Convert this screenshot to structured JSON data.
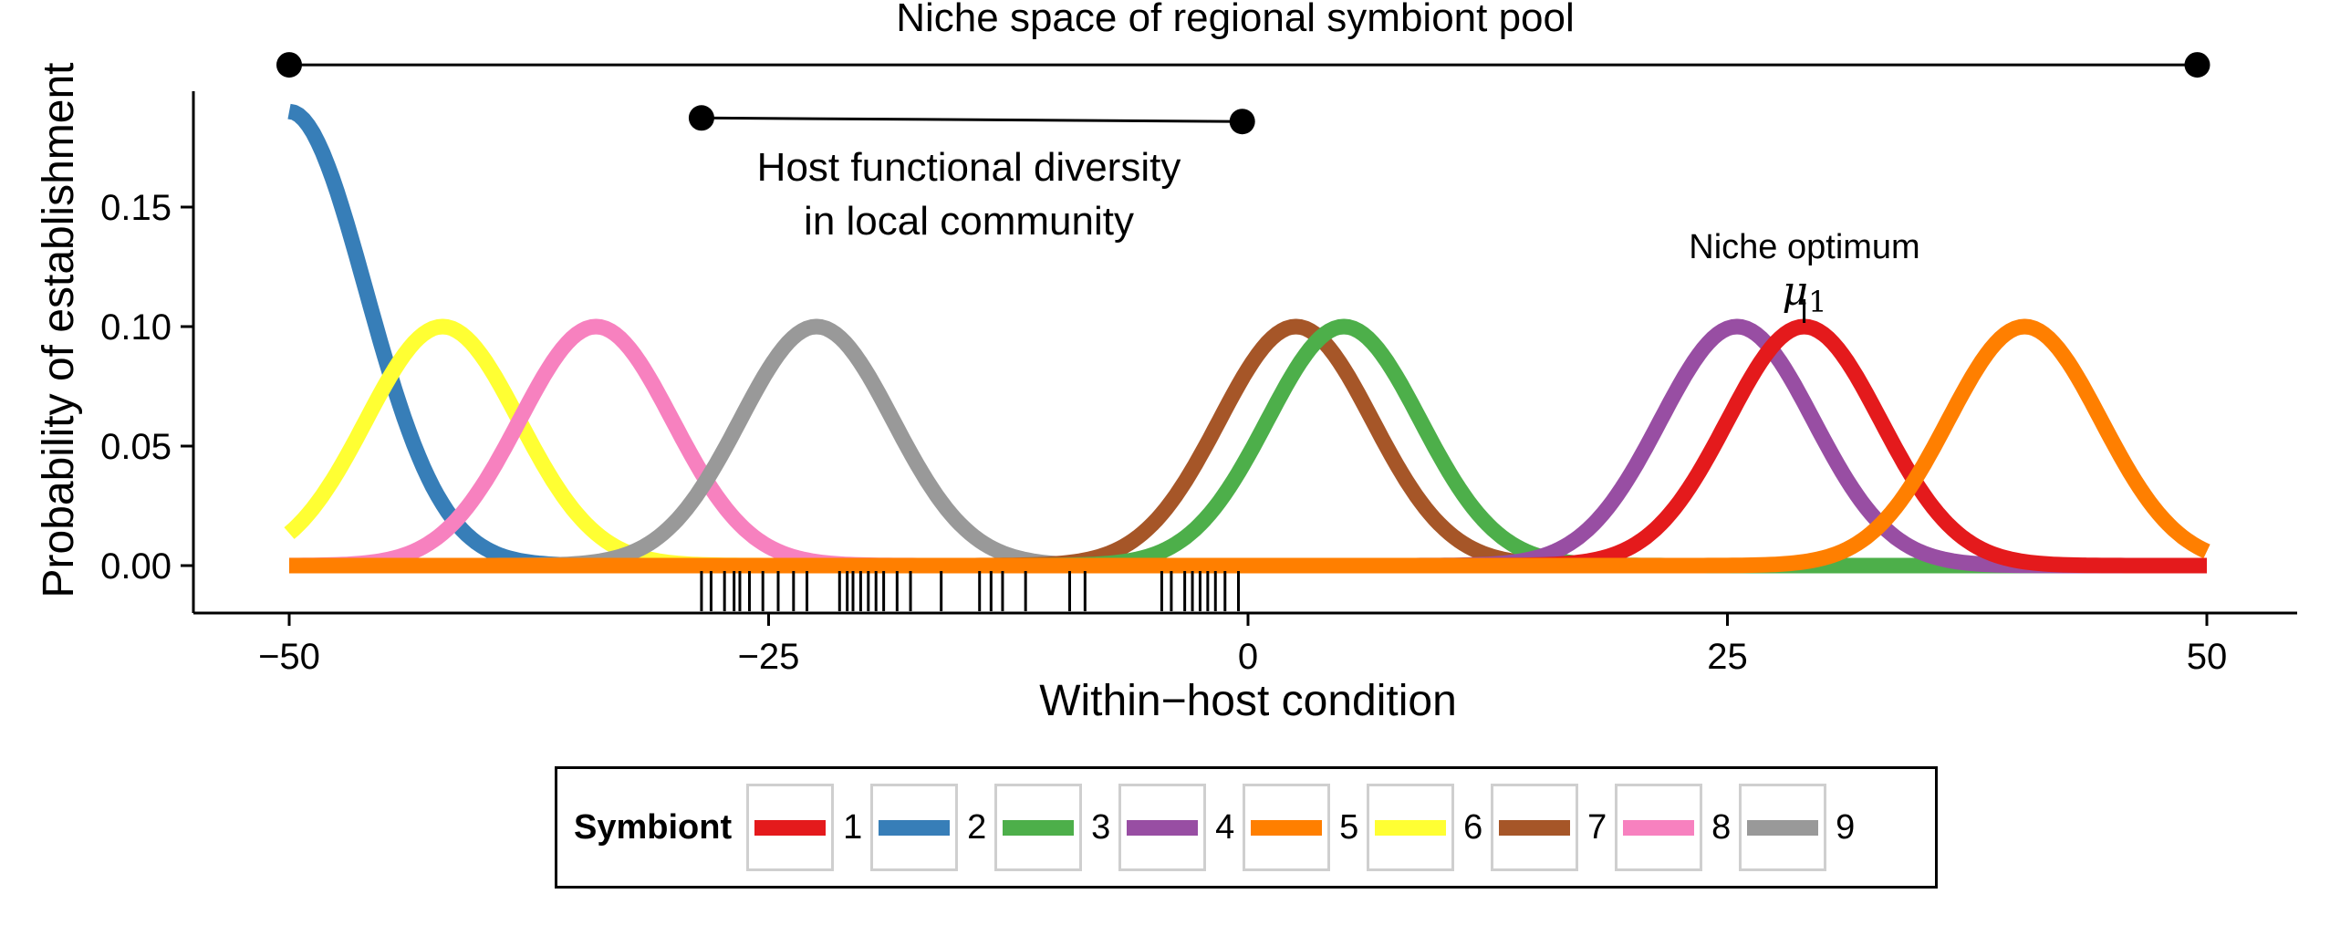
{
  "chart_data": {
    "type": "line",
    "xlabel": "Within−host condition",
    "ylabel": "Probability of establishment",
    "xlim": [
      -55,
      55
    ],
    "ylim": [
      -0.02,
      0.2
    ],
    "x_ticks": [
      -50,
      -25,
      0,
      25,
      50
    ],
    "x_tick_labels": [
      "−50",
      "−25",
      "0",
      "25",
      "50"
    ],
    "y_ticks": [
      0,
      0.05,
      0.1,
      0.15
    ],
    "y_tick_labels": [
      "0.00",
      "0.05",
      "0.10",
      "0.15"
    ],
    "grid": false,
    "legend_position": "bottom",
    "legend_title": "Symbiont",
    "x_domain": [
      -50,
      50
    ],
    "series": [
      {
        "name": "1",
        "color": "#e41a1c",
        "mean": 29,
        "sd": 4,
        "peak": 0.1
      },
      {
        "name": "2",
        "color": "#377eb8",
        "mean": -50,
        "sd": 4,
        "peak": 0.19
      },
      {
        "name": "3",
        "color": "#4daf4a",
        "mean": 5,
        "sd": 4,
        "peak": 0.1
      },
      {
        "name": "4",
        "color": "#984ea3",
        "mean": 25.5,
        "sd": 4,
        "peak": 0.1
      },
      {
        "name": "5",
        "color": "#ff7f00",
        "mean": 40.5,
        "sd": 4,
        "peak": 0.1
      },
      {
        "name": "6",
        "color": "#ffff33",
        "mean": -42,
        "sd": 4,
        "peak": 0.1
      },
      {
        "name": "7",
        "color": "#a65628",
        "mean": 2.5,
        "sd": 4,
        "peak": 0.1
      },
      {
        "name": "8",
        "color": "#f781bf",
        "mean": -34,
        "sd": 4,
        "peak": 0.1
      },
      {
        "name": "9",
        "color": "#999999",
        "mean": -22.5,
        "sd": 4,
        "peak": 0.1
      }
    ],
    "rug_x": [
      -28.5,
      -28.0,
      -27.3,
      -26.8,
      -26.5,
      -26.0,
      -25.3,
      -24.5,
      -23.7,
      -23.0,
      -21.3,
      -20.9,
      -20.6,
      -20.2,
      -19.8,
      -19.4,
      -19.0,
      -18.3,
      -17.6,
      -16.0,
      -14.0,
      -13.4,
      -12.8,
      -11.6,
      -9.3,
      -8.5,
      -4.5,
      -4.0,
      -3.3,
      -2.9,
      -2.5,
      -2.1,
      -1.7,
      -1.2,
      -0.5
    ],
    "annotations": {
      "regional_pool": {
        "label": "Niche space of regional symbiont pool",
        "x0": -50,
        "x1": 49.5,
        "y0": 0.2095,
        "y1": 0.2095
      },
      "local_diversity": {
        "line1": "Host functional diversity",
        "line2": "in local community",
        "x0": -28.5,
        "x1": -0.3,
        "y0": 0.1873,
        "y1": 0.1858
      },
      "niche_optimum": {
        "label": "Niche optimum",
        "symbol": "μ",
        "subscript": "1",
        "x": 29,
        "y": 0.1
      }
    }
  }
}
